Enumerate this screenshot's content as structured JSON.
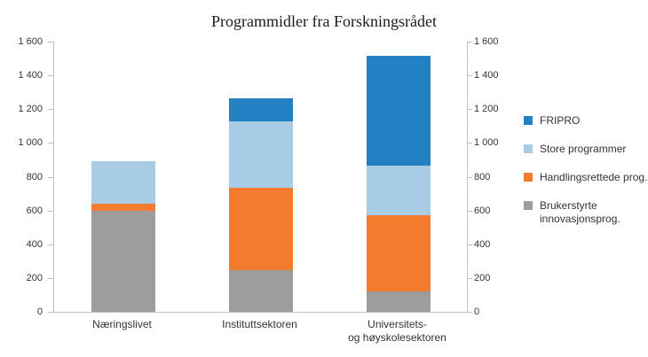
{
  "title": "Programmidler fra Forskningsrådet",
  "chart_data": {
    "type": "bar",
    "stacked": true,
    "title": "Programmidler fra Forskningsrådet",
    "categories": [
      "Næringslivet",
      "Instituttsektoren",
      "Universitets-\nog høyskolesektoren"
    ],
    "series": [
      {
        "name": "Brukerstyrte innovasjonsprog.",
        "color": "#9d9d9d",
        "values": [
          600,
          245,
          120
        ]
      },
      {
        "name": "Handlingsrettede prog.",
        "color": "#f37b2e",
        "values": [
          40,
          490,
          450
        ]
      },
      {
        "name": "Store programmer",
        "color": "#a9cce6",
        "values": [
          250,
          395,
          295
        ]
      },
      {
        "name": "FRIPRO",
        "color": "#2381c3",
        "values": [
          0,
          135,
          650
        ]
      }
    ],
    "totals": [
      890,
      1265,
      1515
    ],
    "ylim": [
      0,
      1600
    ],
    "ytick_step": 200,
    "ytick_labels": [
      "0",
      "200",
      "400",
      "600",
      "800",
      "1 000",
      "1 200",
      "1 400",
      "1 600"
    ],
    "y_axis_sides": [
      "left",
      "right"
    ],
    "grid": false,
    "legend_position": "right"
  },
  "legend": {
    "items": [
      {
        "label": "FRIPRO",
        "color": "#2381c3"
      },
      {
        "label": "Store programmer",
        "color": "#a9cce6"
      },
      {
        "label": "Handlingsrettede prog.",
        "color": "#f37b2e"
      },
      {
        "label": "Brukerstyrte\ninnovasjonsprog.",
        "color": "#9d9d9d"
      }
    ]
  }
}
